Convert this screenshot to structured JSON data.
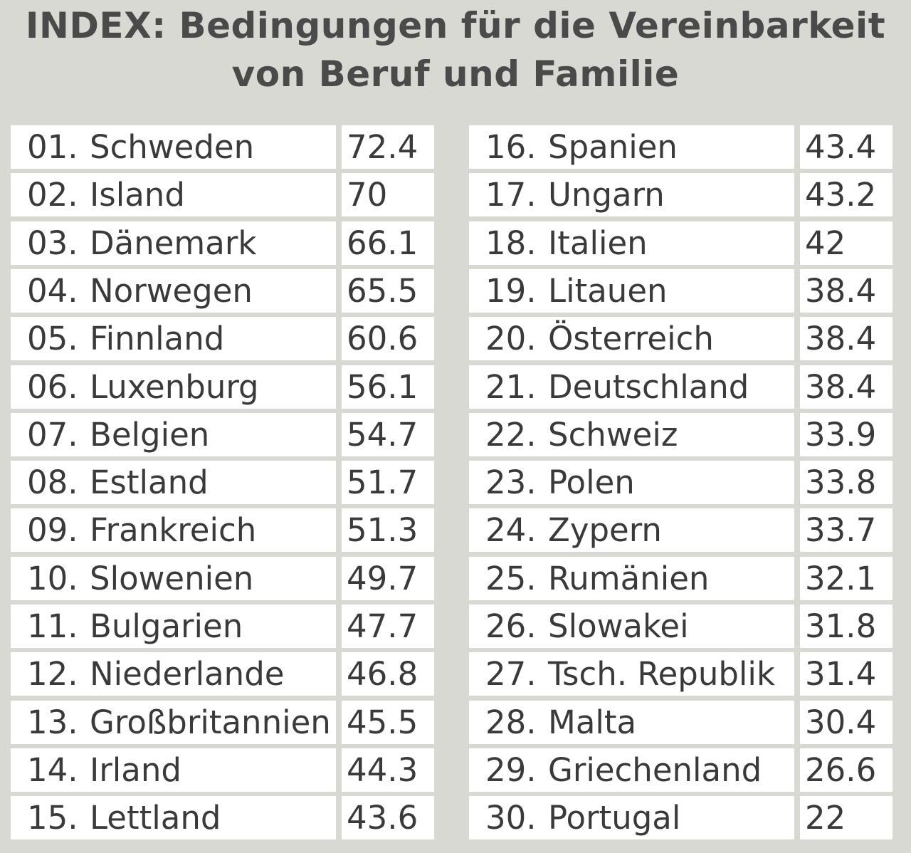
{
  "title": {
    "line1": "INDEX: Bedingungen für die Vereinbarkeit",
    "line2": "von Beruf und Familie"
  },
  "chart_data": {
    "type": "table",
    "title": "INDEX: Bedingungen für die Vereinbarkeit von Beruf und Familie",
    "rows": [
      {
        "rank": "01.",
        "country": "Schweden",
        "value": "72.4"
      },
      {
        "rank": "02.",
        "country": "Island",
        "value": "70"
      },
      {
        "rank": "03.",
        "country": "Dänemark",
        "value": "66.1"
      },
      {
        "rank": "04.",
        "country": "Norwegen",
        "value": "65.5"
      },
      {
        "rank": "05.",
        "country": "Finnland",
        "value": "60.6"
      },
      {
        "rank": "06.",
        "country": "Luxenburg",
        "value": "56.1"
      },
      {
        "rank": "07.",
        "country": "Belgien",
        "value": "54.7"
      },
      {
        "rank": "08.",
        "country": "Estland",
        "value": "51.7"
      },
      {
        "rank": "09.",
        "country": "Frankreich",
        "value": "51.3"
      },
      {
        "rank": "10.",
        "country": "Slowenien",
        "value": "49.7"
      },
      {
        "rank": "11.",
        "country": "Bulgarien",
        "value": "47.7"
      },
      {
        "rank": "12.",
        "country": "Niederlande",
        "value": "46.8"
      },
      {
        "rank": "13.",
        "country": "Großbritannien",
        "value": "45.5"
      },
      {
        "rank": "14.",
        "country": "Irland",
        "value": "44.3"
      },
      {
        "rank": "15.",
        "country": "Lettland",
        "value": "43.6"
      },
      {
        "rank": "16.",
        "country": "Spanien",
        "value": "43.4"
      },
      {
        "rank": "17.",
        "country": "Ungarn",
        "value": "43.2"
      },
      {
        "rank": "18.",
        "country": "Italien",
        "value": "42"
      },
      {
        "rank": "19.",
        "country": "Litauen",
        "value": "38.4"
      },
      {
        "rank": "20.",
        "country": "Österreich",
        "value": "38.4"
      },
      {
        "rank": "21.",
        "country": "Deutschland",
        "value": "38.4"
      },
      {
        "rank": "22.",
        "country": "Schweiz",
        "value": "33.9"
      },
      {
        "rank": "23.",
        "country": "Polen",
        "value": "33.8"
      },
      {
        "rank": "24.",
        "country": "Zypern",
        "value": "33.7"
      },
      {
        "rank": "25.",
        "country": "Rumänien",
        "value": "32.1"
      },
      {
        "rank": "26.",
        "country": "Slowakei",
        "value": "31.8"
      },
      {
        "rank": "27.",
        "country": "Tsch. Republik",
        "value": "31.4"
      },
      {
        "rank": "28.",
        "country": "Malta",
        "value": "30.4"
      },
      {
        "rank": "29.",
        "country": "Griechenland",
        "value": "26.6"
      },
      {
        "rank": "30.",
        "country": "Portugal",
        "value": "22"
      }
    ]
  },
  "colors": {
    "background": "#d8d9d3",
    "cell": "#ffffff",
    "text": "#3a3a3a"
  }
}
